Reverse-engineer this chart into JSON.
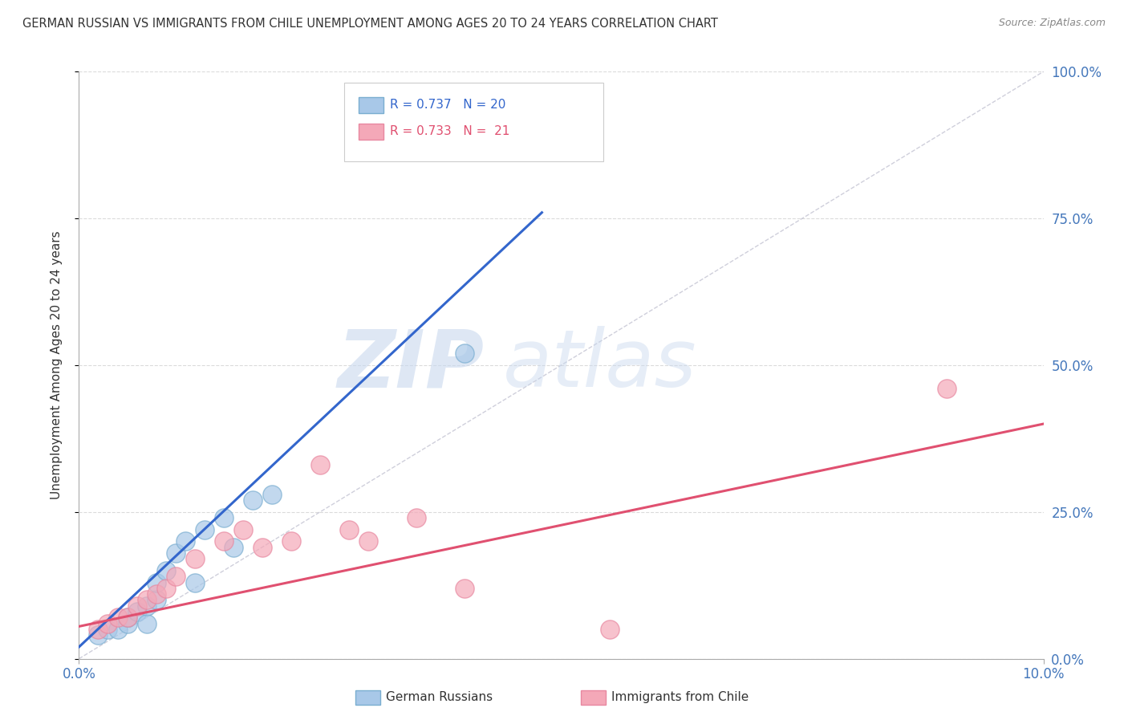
{
  "title": "GERMAN RUSSIAN VS IMMIGRANTS FROM CHILE UNEMPLOYMENT AMONG AGES 20 TO 24 YEARS CORRELATION CHART",
  "source": "Source: ZipAtlas.com",
  "ylabel": "Unemployment Among Ages 20 to 24 years",
  "y_tick_labels": [
    "0.0%",
    "25.0%",
    "50.0%",
    "75.0%",
    "100.0%"
  ],
  "y_tick_values": [
    0,
    0.25,
    0.5,
    0.75,
    1.0
  ],
  "xlim": [
    0,
    0.1
  ],
  "ylim": [
    0,
    1.0
  ],
  "legend_label1": "German Russians",
  "legend_label2": "Immigrants from Chile",
  "blue_color": "#a8c8e8",
  "pink_color": "#f4a8b8",
  "blue_line_color": "#3366cc",
  "pink_line_color": "#e05070",
  "blue_edge_color": "#7aaed0",
  "pink_edge_color": "#e888a0",
  "watermark_zip": "ZIP",
  "watermark_atlas": "atlas",
  "blue_scatter_x": [
    0.002,
    0.003,
    0.004,
    0.005,
    0.005,
    0.006,
    0.007,
    0.007,
    0.008,
    0.008,
    0.009,
    0.01,
    0.011,
    0.012,
    0.013,
    0.015,
    0.016,
    0.018,
    0.02,
    0.04
  ],
  "blue_scatter_y": [
    0.04,
    0.05,
    0.05,
    0.06,
    0.07,
    0.08,
    0.06,
    0.09,
    0.1,
    0.13,
    0.15,
    0.18,
    0.2,
    0.13,
    0.22,
    0.24,
    0.19,
    0.27,
    0.28,
    0.52
  ],
  "pink_scatter_x": [
    0.002,
    0.003,
    0.004,
    0.005,
    0.006,
    0.007,
    0.008,
    0.009,
    0.01,
    0.012,
    0.015,
    0.017,
    0.019,
    0.022,
    0.025,
    0.028,
    0.03,
    0.035,
    0.04,
    0.055,
    0.09
  ],
  "pink_scatter_y": [
    0.05,
    0.06,
    0.07,
    0.07,
    0.09,
    0.1,
    0.11,
    0.12,
    0.14,
    0.17,
    0.2,
    0.22,
    0.19,
    0.2,
    0.33,
    0.22,
    0.2,
    0.24,
    0.12,
    0.05,
    0.46
  ],
  "blue_line_x": [
    0.0,
    0.048
  ],
  "blue_line_y": [
    0.02,
    0.76
  ],
  "pink_line_x": [
    0.0,
    0.1
  ],
  "pink_line_y": [
    0.055,
    0.4
  ],
  "ref_line_x": [
    0.0,
    0.1
  ],
  "ref_line_y": [
    0.0,
    1.0
  ],
  "grid_color": "#cccccc",
  "title_color": "#333333",
  "tick_label_color": "#4477bb"
}
